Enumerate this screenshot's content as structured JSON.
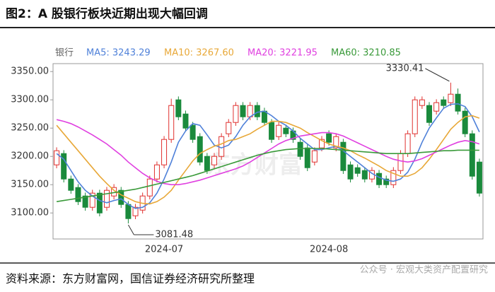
{
  "chart_data": {
    "type": "candlestick",
    "title": "图2：A 股银行板块近期出现大幅回调",
    "legend_title": "银行",
    "source": "资料来源：东方财富网，国信证券经济研究所整理",
    "watermark": "东方财富",
    "watermark_wechat": "公众号 · 宏观大类资产配置研究",
    "up_color": "#e0312f",
    "down_color": "#1a8a3c",
    "categories": [
      null,
      null,
      null,
      null,
      null,
      null,
      null,
      null,
      null,
      null,
      null,
      null,
      null,
      null,
      null,
      "2024-07",
      null,
      null,
      null,
      null,
      null,
      null,
      null,
      null,
      null,
      null,
      null,
      null,
      null,
      null,
      null,
      null,
      null,
      null,
      null,
      null,
      null,
      null,
      "2024-08",
      null,
      null,
      null,
      null,
      null,
      null,
      null,
      null,
      null,
      null,
      null,
      null,
      null,
      null,
      null,
      null,
      null,
      null,
      null,
      null,
      null
    ],
    "open": [
      3185,
      3205,
      3160,
      3145,
      3130,
      3110,
      3135,
      3110,
      3130,
      3140,
      3115,
      3095,
      3105,
      3130,
      3160,
      3185,
      3230,
      3300,
      3275,
      3255,
      3235,
      3200,
      3185,
      3200,
      3240,
      3260,
      3290,
      3270,
      3290,
      3280,
      3260,
      3235,
      3250,
      3245,
      3225,
      3215,
      3190,
      3215,
      3240,
      3215,
      3225,
      3185,
      3180,
      3175,
      3160,
      3170,
      3160,
      3150,
      3175,
      3205,
      3240,
      3290,
      3290,
      3280,
      3300,
      3295,
      3310,
      3280,
      3240,
      3190
    ],
    "high": [
      3216,
      3211,
      3166,
      3151,
      3136,
      3141,
      3141,
      3146,
      3151,
      3146,
      3121,
      3116,
      3136,
      3166,
      3191,
      3236,
      3302,
      3306,
      3281,
      3261,
      3241,
      3206,
      3206,
      3241,
      3266,
      3296,
      3296,
      3296,
      3296,
      3286,
      3266,
      3261,
      3256,
      3251,
      3231,
      3221,
      3216,
      3236,
      3246,
      3241,
      3231,
      3191,
      3186,
      3181,
      3181,
      3176,
      3166,
      3181,
      3211,
      3246,
      3306,
      3306,
      3296,
      3301,
      3306,
      3330.41,
      3320,
      3286,
      3246,
      3196
    ],
    "low": [
      3179,
      3154,
      3134,
      3114,
      3104,
      3104,
      3094,
      3104,
      3124,
      3109,
      3081.48,
      3089,
      3099,
      3124,
      3154,
      3179,
      3224,
      3264,
      3244,
      3224,
      3184,
      3169,
      3179,
      3194,
      3234,
      3254,
      3264,
      3264,
      3264,
      3254,
      3224,
      3229,
      3234,
      3224,
      3194,
      3174,
      3184,
      3209,
      3219,
      3209,
      3169,
      3154,
      3164,
      3154,
      3154,
      3144,
      3144,
      3144,
      3169,
      3199,
      3234,
      3284,
      3254,
      3274,
      3284,
      3289,
      3274,
      3234,
      3159,
      3129
    ],
    "close": [
      3210,
      3160,
      3140,
      3120,
      3110,
      3135,
      3100,
      3140,
      3145,
      3115,
      3090,
      3110,
      3130,
      3160,
      3185,
      3230,
      3290,
      3270,
      3250,
      3230,
      3190,
      3175,
      3200,
      3235,
      3260,
      3290,
      3270,
      3290,
      3270,
      3260,
      3230,
      3255,
      3240,
      3230,
      3200,
      3180,
      3210,
      3230,
      3225,
      3235,
      3175,
      3160,
      3170,
      3160,
      3175,
      3150,
      3150,
      3175,
      3205,
      3240,
      3300,
      3300,
      3260,
      3295,
      3290,
      3310,
      3280,
      3240,
      3165,
      3135
    ],
    "series": [
      {
        "name": "MA5: 3243.29",
        "color": "#4f81d9",
        "values": [
          3205,
          3195,
          3175,
          3155,
          3140,
          3130,
          3122,
          3118,
          3122,
          3125,
          3115,
          3108,
          3110,
          3118,
          3135,
          3160,
          3190,
          3225,
          3245,
          3258,
          3255,
          3238,
          3220,
          3215,
          3220,
          3235,
          3255,
          3270,
          3278,
          3280,
          3272,
          3262,
          3255,
          3245,
          3232,
          3222,
          3212,
          3212,
          3215,
          3218,
          3210,
          3200,
          3190,
          3180,
          3170,
          3163,
          3158,
          3156,
          3160,
          3172,
          3195,
          3225,
          3250,
          3268,
          3285,
          3292,
          3293,
          3288,
          3270,
          3243.29
        ]
      },
      {
        "name": "MA10: 3267.60",
        "color": "#e8a838",
        "values": [
          3255,
          3240,
          3225,
          3210,
          3195,
          3180,
          3165,
          3152,
          3140,
          3132,
          3126,
          3120,
          3117,
          3116,
          3120,
          3128,
          3140,
          3158,
          3175,
          3192,
          3205,
          3212,
          3218,
          3222,
          3228,
          3230,
          3235,
          3240,
          3248,
          3255,
          3262,
          3262,
          3260,
          3255,
          3250,
          3242,
          3235,
          3228,
          3222,
          3218,
          3215,
          3210,
          3203,
          3197,
          3190,
          3183,
          3175,
          3170,
          3165,
          3165,
          3170,
          3180,
          3195,
          3212,
          3230,
          3248,
          3260,
          3270,
          3272,
          3267.6
        ]
      },
      {
        "name": "MA20: 3221.95",
        "color": "#e040e0",
        "values": [
          3265,
          3262,
          3258,
          3252,
          3245,
          3238,
          3230,
          3222,
          3212,
          3202,
          3190,
          3180,
          3170,
          3162,
          3156,
          3152,
          3150,
          3150,
          3152,
          3155,
          3158,
          3162,
          3166,
          3170,
          3174,
          3178,
          3183,
          3190,
          3198,
          3206,
          3214,
          3222,
          3228,
          3232,
          3236,
          3238,
          3240,
          3242,
          3242,
          3240,
          3236,
          3230,
          3224,
          3218,
          3212,
          3206,
          3200,
          3195,
          3192,
          3190,
          3192,
          3196,
          3202,
          3208,
          3214,
          3220,
          3225,
          3228,
          3226,
          3221.95
        ]
      },
      {
        "name": "MA60: 3210.85",
        "color": "#3a9a3a",
        "values": [
          3120,
          3122,
          3124,
          3126,
          3128,
          3130,
          3132,
          3134,
          3136,
          3138,
          3140,
          3142,
          3145,
          3148,
          3151,
          3154,
          3157,
          3160,
          3163,
          3166,
          3170,
          3174,
          3178,
          3182,
          3186,
          3190,
          3194,
          3198,
          3202,
          3205,
          3208,
          3210,
          3212,
          3213,
          3214,
          3214,
          3214,
          3214,
          3213,
          3212,
          3211,
          3210,
          3209,
          3208,
          3207,
          3206,
          3205,
          3205,
          3205,
          3205,
          3206,
          3207,
          3208,
          3209,
          3210,
          3210,
          3211,
          3211,
          3211,
          3210.85
        ]
      }
    ],
    "ylim": [
      3054,
      3364
    ],
    "yticks": [
      {
        "value": 3100,
        "label": "3100.00"
      },
      {
        "value": 3150,
        "label": "3150.00"
      },
      {
        "value": 3200,
        "label": "3200.00"
      },
      {
        "value": 3250,
        "label": "3250.00"
      },
      {
        "value": 3300,
        "label": "3300.00"
      },
      {
        "value": 3350,
        "label": "3350.00"
      }
    ]
  }
}
